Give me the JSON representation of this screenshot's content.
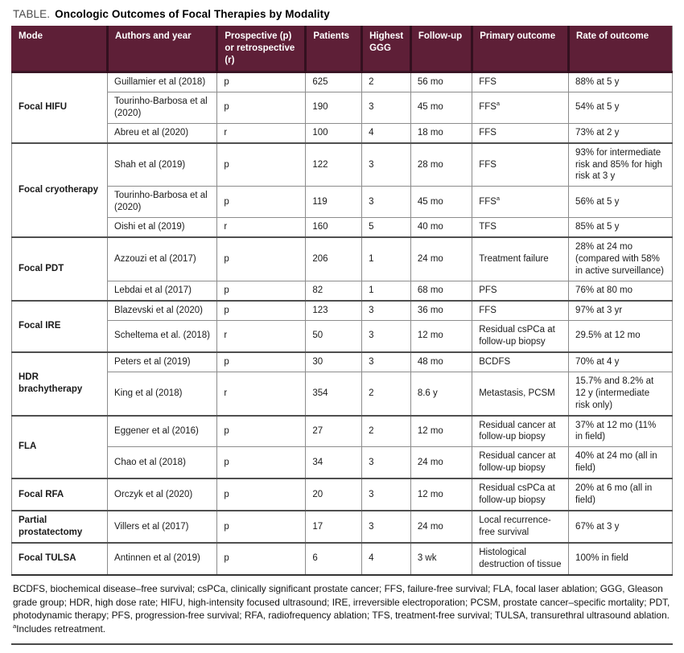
{
  "page": {
    "title_label": "TABLE.",
    "title": "Oncologic Outcomes of Focal Therapies by Modality"
  },
  "colors": {
    "header_bg": "#5e1f37",
    "header_text": "#ffffff",
    "header_separator": "#33101f",
    "row_border": "#8c8c8c",
    "section_border": "#4f4f4f",
    "text": "#1a1a1a"
  },
  "table": {
    "columns": [
      "Mode",
      "Authors and year",
      "Prospective (p) or retrospective (r)",
      "Patients",
      "Highest GGG",
      "Follow-up",
      "Primary outcome",
      "Rate of outcome"
    ],
    "sections": [
      {
        "mode": "Focal HIFU",
        "studies": [
          {
            "authors": "Guillamier et al (2018)",
            "design": "p",
            "patients": "625",
            "highest_ggg": "2",
            "follow_up": "56 mo",
            "primary_outcome": "FFS",
            "rate_of_outcome": "88% at 5 y"
          },
          {
            "authors": "Tourinho-Barbosa et al (2020)",
            "design": "p",
            "patients": "190",
            "highest_ggg": "3",
            "follow_up": "45 mo",
            "primary_outcome": "FFSᵃ",
            "rate_of_outcome": "54% at 5 y"
          },
          {
            "authors": "Abreu et al (2020)",
            "design": "r",
            "patients": "100",
            "highest_ggg": "4",
            "follow_up": "18 mo",
            "primary_outcome": "FFS",
            "rate_of_outcome": "73% at 2 y"
          }
        ]
      },
      {
        "mode": "Focal cryotherapy",
        "studies": [
          {
            "authors": "Shah et al (2019)",
            "design": "p",
            "patients": "122",
            "highest_ggg": "3",
            "follow_up": "28 mo",
            "primary_outcome": "FFS",
            "rate_of_outcome": "93% for intermediate risk and 85% for high risk at 3 y"
          },
          {
            "authors": "Tourinho-Barbosa et al (2020)",
            "design": "p",
            "patients": "119",
            "highest_ggg": "3",
            "follow_up": "45 mo",
            "primary_outcome": "FFSᵃ",
            "rate_of_outcome": "56% at 5 y"
          },
          {
            "authors": "Oishi et al (2019)",
            "design": "r",
            "patients": "160",
            "highest_ggg": "5",
            "follow_up": "40 mo",
            "primary_outcome": "TFS",
            "rate_of_outcome": "85% at 5 y"
          }
        ]
      },
      {
        "mode": "Focal PDT",
        "studies": [
          {
            "authors": "Azzouzi et al (2017)",
            "design": "p",
            "patients": "206",
            "highest_ggg": "1",
            "follow_up": "24 mo",
            "primary_outcome": "Treatment failure",
            "rate_of_outcome": "28% at 24 mo (compared with 58% in active surveillance)"
          },
          {
            "authors": "Lebdai et al (2017)",
            "design": "p",
            "patients": "82",
            "highest_ggg": "1",
            "follow_up": "68 mo",
            "primary_outcome": "PFS",
            "rate_of_outcome": "76% at 80 mo"
          }
        ]
      },
      {
        "mode": "Focal IRE",
        "studies": [
          {
            "authors": "Blazevski et al (2020)",
            "design": "p",
            "patients": "123",
            "highest_ggg": "3",
            "follow_up": "36 mo",
            "primary_outcome": "FFS",
            "rate_of_outcome": "97% at 3 yr"
          },
          {
            "authors": "Scheltema et al. (2018)",
            "design": "r",
            "patients": "50",
            "highest_ggg": "3",
            "follow_up": "12 mo",
            "primary_outcome": "Residual csPCa at follow-up biopsy",
            "rate_of_outcome": "29.5% at 12 mo"
          }
        ]
      },
      {
        "mode": "HDR brachytherapy",
        "studies": [
          {
            "authors": "Peters et al (2019)",
            "design": "p",
            "patients": "30",
            "highest_ggg": "3",
            "follow_up": "48 mo",
            "primary_outcome": "BCDFS",
            "rate_of_outcome": "70% at 4 y"
          },
          {
            "authors": "King et al (2018)",
            "design": "r",
            "patients": "354",
            "highest_ggg": "2",
            "follow_up": "8.6 y",
            "primary_outcome": "Metastasis, PCSM",
            "rate_of_outcome": "15.7% and 8.2% at 12 y (intermediate risk only)"
          }
        ]
      },
      {
        "mode": "FLA",
        "studies": [
          {
            "authors": "Eggener et al (2016)",
            "design": "p",
            "patients": "27",
            "highest_ggg": "2",
            "follow_up": "12 mo",
            "primary_outcome": "Residual cancer at follow-up biopsy",
            "rate_of_outcome": "37% at 12 mo (11% in field)"
          },
          {
            "authors": "Chao et al (2018)",
            "design": "p",
            "patients": "34",
            "highest_ggg": "3",
            "follow_up": "24 mo",
            "primary_outcome": "Residual cancer at follow-up biopsy",
            "rate_of_outcome": "40% at 24 mo (all in field)"
          }
        ]
      },
      {
        "mode": "Focal RFA",
        "studies": [
          {
            "authors": "Orczyk et al (2020)",
            "design": "p",
            "patients": "20",
            "highest_ggg": "3",
            "follow_up": "12 mo",
            "primary_outcome": "Residual csPCa at follow-up biopsy",
            "rate_of_outcome": "20% at 6 mo (all in field)"
          }
        ]
      },
      {
        "mode": "Partial prostatectomy",
        "studies": [
          {
            "authors": "Villers et al (2017)",
            "design": "p",
            "patients": "17",
            "highest_ggg": "3",
            "follow_up": "24 mo",
            "primary_outcome": "Local recurrence-free survival",
            "rate_of_outcome": "67% at 3 y"
          }
        ]
      },
      {
        "mode": "Focal TULSA",
        "studies": [
          {
            "authors": "Antinnen et al (2019)",
            "design": "p",
            "patients": "6",
            "highest_ggg": "4",
            "follow_up": "3 wk",
            "primary_outcome": "Histological destruction of tissue",
            "rate_of_outcome": "100% in field"
          }
        ]
      }
    ]
  },
  "footnotes": {
    "abbreviations": "BCDFS, biochemical disease–free survival; csPCa, clinically significant prostate cancer; FFS, failure-free survival; FLA, focal laser ablation; GGG, Gleason grade group; HDR, high dose rate; HIFU, high-intensity focused ultrasound; IRE, irreversible electroporation; PCSM, prostate cancer–specific mortality; PDT, photodynamic therapy; PFS, progression-free survival; RFA, radiofrequency ablation; TFS, treatment-free survival; TULSA, transurethral ultrasound ablation.",
    "note_a": "ᵃIncludes retreatment."
  }
}
